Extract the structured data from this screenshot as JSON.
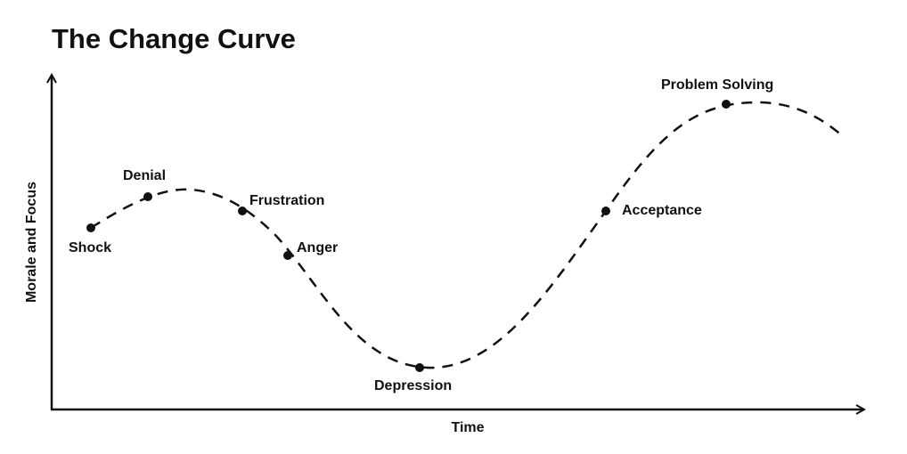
{
  "title": "The Change Curve",
  "axes": {
    "y_label": "Morale and Focus",
    "x_label": "Time"
  },
  "stages": [
    {
      "label": "Shock"
    },
    {
      "label": "Denial"
    },
    {
      "label": "Frustration"
    },
    {
      "label": "Anger"
    },
    {
      "label": "Depression"
    },
    {
      "label": "Acceptance"
    },
    {
      "label": "Problem Solving"
    }
  ]
}
